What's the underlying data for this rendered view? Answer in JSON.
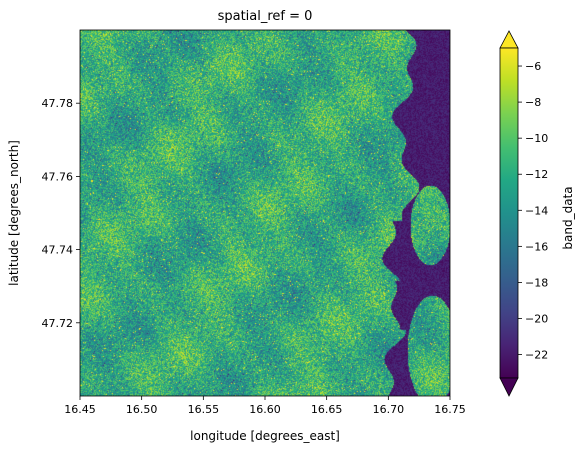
{
  "chart_data": {
    "type": "heatmap",
    "title": "spatial_ref = 0",
    "xlabel": "longitude [degrees_east]",
    "ylabel": "latitude [degrees_north]",
    "xlim": [
      16.45,
      16.75
    ],
    "ylim": [
      47.7,
      47.8
    ],
    "x_ticks": [
      16.45,
      16.5,
      16.55,
      16.6,
      16.65,
      16.7,
      16.75
    ],
    "x_tick_labels": [
      "16.45",
      "16.50",
      "16.55",
      "16.60",
      "16.65",
      "16.70",
      "16.75"
    ],
    "y_ticks": [
      47.72,
      47.74,
      47.76,
      47.78
    ],
    "y_tick_labels": [
      "47.72",
      "47.74",
      "47.76",
      "47.78"
    ],
    "colorbar": {
      "label": "band_data",
      "colormap": "viridis",
      "range": [
        -23.3,
        -5.0
      ],
      "extend": "both",
      "ticks": [
        -22,
        -20,
        -18,
        -16,
        -14,
        -12,
        -10,
        -8,
        -6
      ],
      "tick_labels": [
        "−22",
        "−20",
        "−18",
        "−16",
        "−14",
        "−12",
        "−10",
        "−8",
        "−6"
      ]
    },
    "colors": {
      "low": "#440154",
      "mid": "#21918c",
      "high": "#fde725"
    }
  }
}
